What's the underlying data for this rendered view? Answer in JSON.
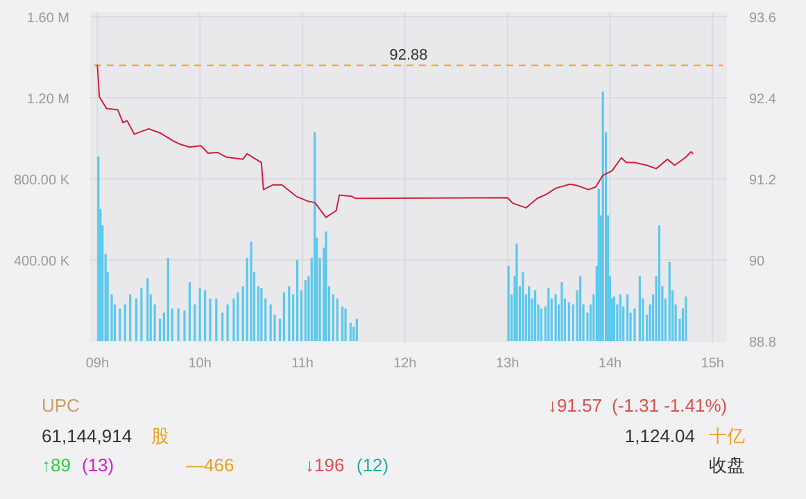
{
  "chart_data": [
    {
      "type": "bar",
      "xlim": [
        8.93,
        15.14
      ],
      "xticks": [
        {
          "value": 9,
          "label": "09h"
        },
        {
          "value": 10,
          "label": "10h"
        },
        {
          "value": 11,
          "label": "11h"
        },
        {
          "value": 12,
          "label": "12h"
        },
        {
          "value": 13,
          "label": "13h"
        },
        {
          "value": 14,
          "label": "14h"
        },
        {
          "value": 15,
          "label": "15h"
        }
      ],
      "ylim": [
        0,
        1600000
      ],
      "yticks": [
        {
          "value": 400000,
          "label": "400.00 K"
        },
        {
          "value": 800000,
          "label": "800.00 K"
        },
        {
          "value": 1200000,
          "label": "1.20 M"
        },
        {
          "value": 1600000,
          "label": "1.60 M"
        }
      ],
      "y2lim": [
        88.8,
        93.6
      ],
      "y2ticks": [
        88.8,
        90,
        91.2,
        92.4,
        93.6
      ],
      "grid": true,
      "ref_lines": [
        {
          "axis": "y2",
          "value": 92.88,
          "label": "92.88",
          "color": "#f5a623",
          "line_style": "dashed"
        }
      ],
      "series": [
        {
          "type": "bar",
          "color": "#5bc8ec",
          "x": [
            9.01,
            9.03,
            9.05,
            9.08,
            9.1,
            9.14,
            9.17,
            9.22,
            9.27,
            9.32,
            9.38,
            9.43,
            9.49,
            9.52,
            9.56,
            9.61,
            9.65,
            9.69,
            9.73,
            9.79,
            9.85,
            9.9,
            9.95,
            10.0,
            10.05,
            10.1,
            10.16,
            10.22,
            10.27,
            10.33,
            10.37,
            10.42,
            10.46,
            10.5,
            10.53,
            10.57,
            10.6,
            10.64,
            10.69,
            10.73,
            10.78,
            10.82,
            10.87,
            10.91,
            10.95,
            10.99,
            11.03,
            11.06,
            11.09,
            11.12,
            11.14,
            11.17,
            11.21,
            11.23,
            11.26,
            11.3,
            11.34,
            11.39,
            11.42,
            11.47,
            11.5,
            11.53,
            13.01,
            13.04,
            13.07,
            13.09,
            13.12,
            13.15,
            13.18,
            13.21,
            13.24,
            13.27,
            13.3,
            13.33,
            13.37,
            13.4,
            13.43,
            13.47,
            13.5,
            13.53,
            13.56,
            13.6,
            13.64,
            13.68,
            13.71,
            13.74,
            13.78,
            13.81,
            13.84,
            13.87,
            13.89,
            13.91,
            13.93,
            13.96,
            13.98,
            14.0,
            14.02,
            14.04,
            14.07,
            14.1,
            14.13,
            14.17,
            14.2,
            14.24,
            14.29,
            14.32,
            14.36,
            14.39,
            14.42,
            14.45,
            14.48,
            14.51,
            14.54,
            14.58,
            14.61,
            14.64,
            14.68,
            14.71,
            14.74
          ],
          "values": [
            910000,
            650000,
            570000,
            430000,
            340000,
            230000,
            180000,
            160000,
            180000,
            230000,
            210000,
            260000,
            310000,
            230000,
            180000,
            110000,
            140000,
            410000,
            160000,
            160000,
            150000,
            290000,
            180000,
            260000,
            250000,
            210000,
            210000,
            140000,
            180000,
            210000,
            240000,
            270000,
            410000,
            490000,
            340000,
            270000,
            260000,
            210000,
            180000,
            130000,
            110000,
            240000,
            270000,
            230000,
            400000,
            250000,
            300000,
            320000,
            410000,
            1030000,
            510000,
            410000,
            460000,
            540000,
            270000,
            230000,
            210000,
            170000,
            160000,
            90000,
            70000,
            110000,
            370000,
            230000,
            320000,
            480000,
            270000,
            340000,
            230000,
            270000,
            210000,
            250000,
            180000,
            160000,
            170000,
            260000,
            210000,
            230000,
            180000,
            290000,
            210000,
            190000,
            180000,
            250000,
            320000,
            180000,
            140000,
            180000,
            230000,
            370000,
            750000,
            620000,
            1230000,
            1030000,
            620000,
            320000,
            210000,
            220000,
            180000,
            230000,
            170000,
            230000,
            140000,
            160000,
            320000,
            210000,
            130000,
            180000,
            230000,
            320000,
            570000,
            270000,
            210000,
            390000,
            250000,
            180000,
            110000,
            160000,
            220000
          ]
        },
        {
          "type": "line",
          "axis": "y2",
          "color": "#d0203a",
          "x": [
            9.0,
            9.02,
            9.09,
            9.2,
            9.25,
            9.29,
            9.36,
            9.5,
            9.61,
            9.74,
            9.81,
            9.9,
            10.01,
            10.08,
            10.17,
            10.26,
            10.42,
            10.46,
            10.6,
            10.62,
            10.71,
            10.8,
            10.94,
            11.05,
            11.12,
            11.23,
            11.31,
            11.33,
            11.36,
            11.48,
            11.52,
            13.0,
            13.05,
            13.18,
            13.29,
            13.38,
            13.47,
            13.61,
            13.68,
            13.79,
            13.86,
            13.93,
            14.02,
            14.11,
            14.16,
            14.24,
            14.36,
            14.45,
            14.56,
            14.63,
            14.74,
            14.79,
            14.81
          ],
          "values": [
            92.89,
            92.41,
            92.24,
            92.22,
            92.03,
            92.06,
            91.86,
            91.94,
            91.88,
            91.76,
            91.71,
            91.67,
            91.69,
            91.58,
            91.59,
            91.52,
            91.49,
            91.57,
            91.44,
            91.04,
            91.11,
            91.11,
            90.94,
            90.87,
            90.85,
            90.63,
            90.71,
            90.73,
            90.96,
            90.94,
            90.91,
            90.92,
            90.84,
            90.77,
            90.91,
            90.97,
            91.06,
            91.12,
            91.1,
            91.04,
            91.08,
            91.25,
            91.32,
            91.51,
            91.44,
            91.44,
            91.4,
            91.35,
            91.49,
            91.4,
            91.52,
            91.6,
            91.57
          ]
        }
      ]
    },
    {
      "type": "other",
      "annotations": [
        "UPC",
        "↓91.57",
        "(-1.31  -1.41%)",
        "61,144,914",
        "股",
        "1,124.04",
        "十亿",
        "↑89",
        "(13)",
        "—466",
        "↓196",
        "(12)",
        "收盘"
      ]
    }
  ]
}
